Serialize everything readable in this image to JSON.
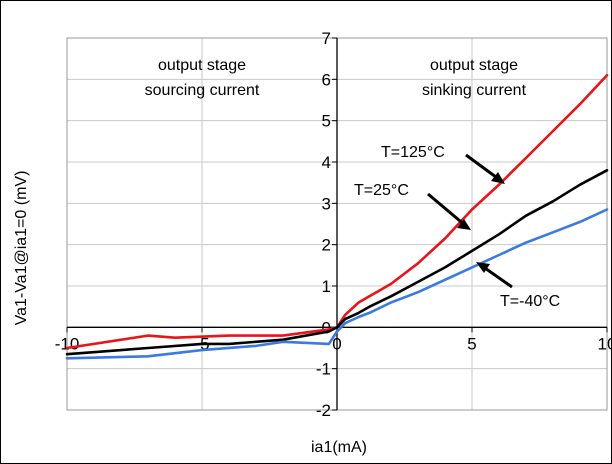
{
  "chart_data": {
    "type": "line",
    "title": "",
    "xlabel": "ia1(mA)",
    "ylabel": "Va1-Va1@ia1=0 (mV)",
    "xlim": [
      -10,
      10
    ],
    "ylim": [
      -2,
      7
    ],
    "x_ticks": [
      "-10",
      "-5",
      "0",
      "5",
      "10"
    ],
    "y_ticks": [
      "-2",
      "-1",
      "0",
      "1",
      "2",
      "3",
      "4",
      "5",
      "6",
      "7"
    ],
    "grid": true,
    "annotations": {
      "sourcing": [
        "output stage",
        "sourcing current"
      ],
      "sinking": [
        "output stage",
        "sinking current"
      ]
    },
    "series": [
      {
        "name": "T=125°C",
        "color": "#e8141a",
        "x": [
          -10,
          -7,
          -6,
          -4,
          -2,
          -0.3,
          0,
          0.3,
          0.8,
          1.2,
          2,
          3,
          4,
          5,
          6,
          7,
          8,
          9,
          10
        ],
        "y": [
          -0.5,
          -0.2,
          -0.25,
          -0.2,
          -0.2,
          -0.05,
          0,
          0.3,
          0.6,
          0.75,
          1.05,
          1.55,
          2.15,
          2.85,
          3.45,
          4.1,
          4.75,
          5.4,
          6.1
        ]
      },
      {
        "name": "T=25°C",
        "color": "#000000",
        "x": [
          -10,
          -7,
          -5,
          -4,
          -2,
          -0.3,
          0,
          0.3,
          0.8,
          1.2,
          2,
          3,
          4,
          5,
          6,
          7,
          8,
          9,
          10
        ],
        "y": [
          -0.65,
          -0.5,
          -0.4,
          -0.4,
          -0.3,
          -0.1,
          0,
          0.2,
          0.35,
          0.5,
          0.75,
          1.1,
          1.45,
          1.85,
          2.25,
          2.7,
          3.05,
          3.45,
          3.8
        ]
      },
      {
        "name": "T=-40°C",
        "color": "#3a7be0",
        "x": [
          -10,
          -7,
          -5,
          -3,
          -2,
          -0.3,
          0,
          0.3,
          0.8,
          1.2,
          2,
          3,
          4,
          5,
          6,
          7,
          8,
          9,
          10
        ],
        "y": [
          -0.75,
          -0.7,
          -0.55,
          -0.45,
          -0.35,
          -0.4,
          -0.1,
          0.1,
          0.25,
          0.35,
          0.6,
          0.85,
          1.15,
          1.45,
          1.75,
          2.05,
          2.3,
          2.55,
          2.85
        ]
      }
    ],
    "labels": {
      "t125": "T=125°C",
      "t25": "T=25°C",
      "tm40": "T=-40°C"
    }
  }
}
